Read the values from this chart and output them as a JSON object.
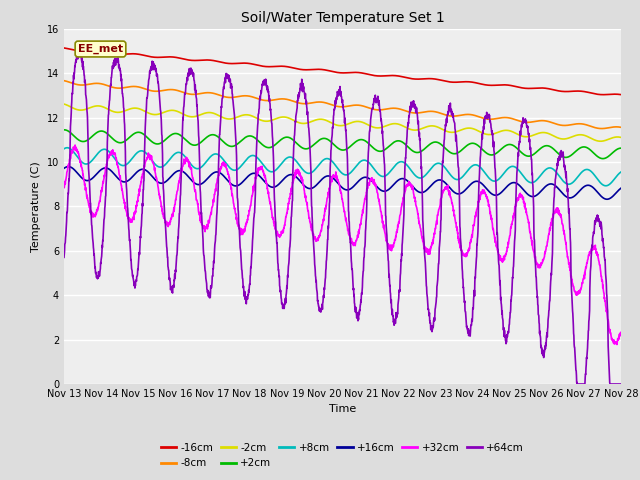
{
  "title": "Soil/Water Temperature Set 1",
  "xlabel": "Time",
  "ylabel": "Temperature (C)",
  "ylim": [
    0,
    16
  ],
  "yticks": [
    0,
    2,
    4,
    6,
    8,
    10,
    12,
    14,
    16
  ],
  "xtick_labels": [
    "Nov 13",
    "Nov 14",
    "Nov 15",
    "Nov 16",
    "Nov 17",
    "Nov 18",
    "Nov 19",
    "Nov 20",
    "Nov 21",
    "Nov 22",
    "Nov 23",
    "Nov 24",
    "Nov 25",
    "Nov 26",
    "Nov 27",
    "Nov 28"
  ],
  "annotation_text": "EE_met",
  "bg_color": "#dddddd",
  "plot_bg_color": "#eeeeee",
  "grid_color": "#ffffff",
  "series": [
    {
      "label": "-16cm",
      "color": "#dd0000",
      "linewidth": 1.2
    },
    {
      "label": "-8cm",
      "color": "#ff8800",
      "linewidth": 1.2
    },
    {
      "label": "-2cm",
      "color": "#dddd00",
      "linewidth": 1.2
    },
    {
      "label": "+2cm",
      "color": "#00bb00",
      "linewidth": 1.2
    },
    {
      "label": "+8cm",
      "color": "#00bbbb",
      "linewidth": 1.2
    },
    {
      "label": "+16cm",
      "color": "#000099",
      "linewidth": 1.2
    },
    {
      "label": "+32cm",
      "color": "#ff00ff",
      "linewidth": 1.2
    },
    {
      "label": "+64cm",
      "color": "#8800bb",
      "linewidth": 1.2
    }
  ],
  "legend_ncol": 6,
  "title_fontsize": 10,
  "tick_fontsize": 7,
  "label_fontsize": 8
}
